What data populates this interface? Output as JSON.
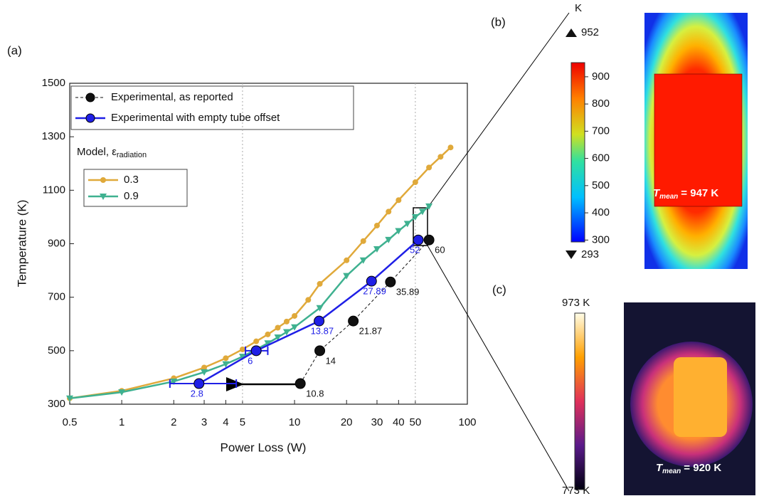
{
  "chart_data": {
    "type": "line",
    "panel_label": "(a)",
    "xlabel": "Power Loss (W)",
    "ylabel": "Temperature (K)",
    "xscale": "log",
    "xlim": [
      0.5,
      100
    ],
    "ylim": [
      300,
      1500
    ],
    "xticks": [
      0.5,
      1,
      2,
      3,
      4,
      5,
      10,
      20,
      30,
      40,
      50,
      100
    ],
    "yticks": [
      300,
      500,
      700,
      900,
      1100,
      1300,
      1500
    ],
    "reference_lines_x": [
      5,
      50
    ],
    "legend_title": "Model, ε",
    "legend_title_sub": "radiation",
    "series": [
      {
        "name": "Experimental, as reported",
        "color": "#111111",
        "marker": "circle",
        "dashed": true,
        "x": [
          10.8,
          14,
          21.87,
          35.89,
          60
        ],
        "values": [
          377,
          500,
          611,
          757,
          914
        ]
      },
      {
        "name": "Experimental with empty tube offset",
        "color": "#1f1fe6",
        "marker": "circle",
        "x": [
          2.8,
          6,
          13.87,
          27.89,
          52
        ],
        "values": [
          377,
          500,
          611,
          760,
          914
        ],
        "xerr_lo": [
          1.9,
          5.2,
          null,
          null,
          null
        ],
        "xerr_hi": [
          4.6,
          7.0,
          null,
          null,
          null
        ]
      },
      {
        "name": "0.3",
        "color": "#e0a93a",
        "marker": "circle",
        "x": [
          0.5,
          1,
          2,
          3,
          4,
          5,
          6,
          7,
          8,
          9,
          10,
          12,
          14,
          20,
          25,
          30,
          35,
          40,
          50,
          60,
          70,
          80
        ],
        "values": [
          322,
          350,
          397,
          437,
          472,
          505,
          535,
          561,
          586,
          609,
          630,
          690,
          750,
          838,
          910,
          968,
          1020,
          1063,
          1130,
          1185,
          1225,
          1260
        ]
      },
      {
        "name": "0.9",
        "color": "#3fb190",
        "marker": "triangle",
        "x": [
          0.5,
          1,
          2,
          3,
          4,
          5,
          6,
          7,
          8,
          9,
          10,
          14,
          20,
          25,
          30,
          35,
          40,
          45,
          50,
          55,
          60
        ],
        "values": [
          322,
          345,
          385,
          420,
          450,
          478,
          505,
          528,
          550,
          570,
          588,
          660,
          780,
          838,
          880,
          915,
          948,
          975,
          1000,
          1020,
          1040
        ]
      }
    ]
  },
  "panel_b": {
    "label": "(b)",
    "unit": "K",
    "max": 952,
    "min": 293,
    "colorbar_lim": [
      293,
      952
    ],
    "colorbar_ticks": [
      300,
      400,
      500,
      600,
      700,
      800,
      900
    ],
    "annotation": {
      "symbol": "T",
      "sub": "mean",
      "text": "= 947 K"
    }
  },
  "panel_c": {
    "label": "(c)",
    "colorbar_top": "973 K",
    "colorbar_bottom": "773 K",
    "annotation": {
      "symbol": "T",
      "sub": "mean",
      "text": "= 920 K"
    }
  }
}
